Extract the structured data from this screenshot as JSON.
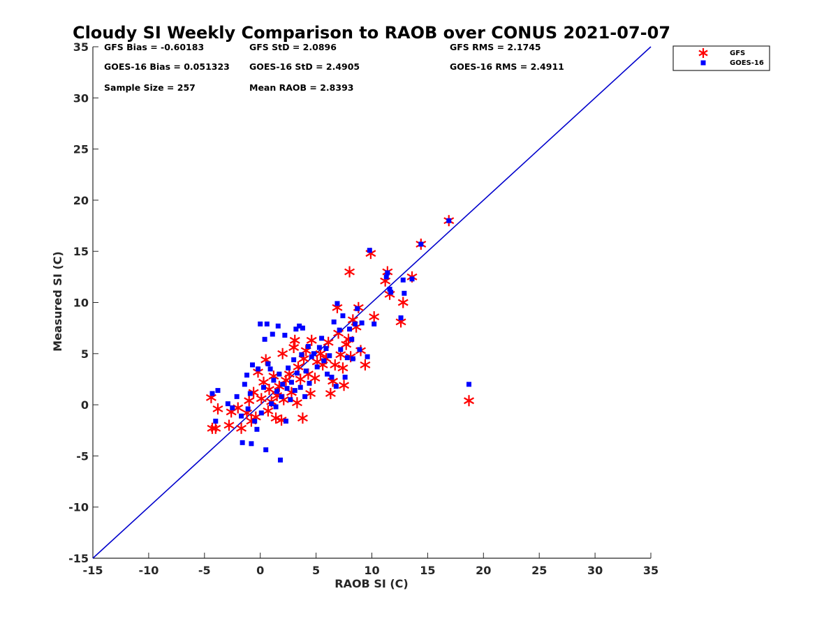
{
  "chart_data": {
    "type": "scatter",
    "title": "Cloudy SI Weekly Comparison to RAOB over CONUS 2021-07-07",
    "xlabel": "RAOB SI (C)",
    "ylabel": "Measured SI (C)",
    "xlim": [
      -15,
      35
    ],
    "ylim": [
      -15,
      35
    ],
    "xticks": [
      "-15",
      "-10",
      "-5",
      "0",
      "5",
      "10",
      "15",
      "20",
      "25",
      "30",
      "35"
    ],
    "yticks": [
      "35",
      "30",
      "25",
      "20",
      "15",
      "10",
      "5",
      "0",
      "-5",
      "-10",
      "-15"
    ],
    "grid": false,
    "legend_position": "top-right outside",
    "reference_line": {
      "x": [
        -15,
        35
      ],
      "y": [
        -15,
        35
      ],
      "color": "#0000cc"
    },
    "stats": [
      {
        "key": "gfs_bias",
        "text": "GFS Bias = -0.60183"
      },
      {
        "key": "gfs_std",
        "text": "GFS StD = 2.0896"
      },
      {
        "key": "gfs_rms",
        "text": "GFS RMS = 2.1745"
      },
      {
        "key": "goes_bias",
        "text": "GOES-16 Bias = 0.051323"
      },
      {
        "key": "goes_std",
        "text": "GOES-16 StD = 2.4905"
      },
      {
        "key": "goes_rms",
        "text": "GOES-16 RMS = 2.4911"
      },
      {
        "key": "sample_size",
        "text": "Sample Size = 257"
      },
      {
        "key": "mean_raob",
        "text": "Mean RAOB = 2.8393"
      }
    ],
    "series": [
      {
        "name": "GFS",
        "marker": "asterisk",
        "color": "#ff0000",
        "points": [
          [
            -4.4,
            0.7
          ],
          [
            -4.3,
            -2.3
          ],
          [
            -4.0,
            -2.3
          ],
          [
            -3.8,
            -0.4
          ],
          [
            -2.8,
            -2.0
          ],
          [
            -2.6,
            -0.7
          ],
          [
            -2.0,
            -0.3
          ],
          [
            -1.7,
            -2.3
          ],
          [
            -1.2,
            -0.8
          ],
          [
            -1.0,
            0.4
          ],
          [
            -0.8,
            -1.6
          ],
          [
            -0.6,
            1.2
          ],
          [
            -0.4,
            -1.2
          ],
          [
            -0.2,
            3.2
          ],
          [
            0.1,
            0.6
          ],
          [
            0.3,
            2.2
          ],
          [
            0.5,
            4.4
          ],
          [
            0.7,
            -0.6
          ],
          [
            0.8,
            1.5
          ],
          [
            1.0,
            0.3
          ],
          [
            1.2,
            2.8
          ],
          [
            1.4,
            -1.3
          ],
          [
            1.5,
            0.9
          ],
          [
            1.7,
            1.8
          ],
          [
            1.9,
            -1.5
          ],
          [
            2.0,
            5.0
          ],
          [
            2.1,
            0.5
          ],
          [
            2.3,
            2.4
          ],
          [
            2.6,
            3.0
          ],
          [
            2.8,
            1.2
          ],
          [
            3.0,
            5.6
          ],
          [
            3.1,
            6.3
          ],
          [
            3.3,
            0.2
          ],
          [
            3.4,
            3.7
          ],
          [
            3.6,
            2.5
          ],
          [
            3.8,
            -1.3
          ],
          [
            3.9,
            4.5
          ],
          [
            4.1,
            5.3
          ],
          [
            4.3,
            3.0
          ],
          [
            4.5,
            1.1
          ],
          [
            4.6,
            6.3
          ],
          [
            4.9,
            2.6
          ],
          [
            5.1,
            4.2
          ],
          [
            5.4,
            5.0
          ],
          [
            5.6,
            3.9
          ],
          [
            5.9,
            4.5
          ],
          [
            6.1,
            6.1
          ],
          [
            6.3,
            1.1
          ],
          [
            6.5,
            2.3
          ],
          [
            6.7,
            3.9
          ],
          [
            6.9,
            9.5
          ],
          [
            7.0,
            7.0
          ],
          [
            7.2,
            4.9
          ],
          [
            7.4,
            3.6
          ],
          [
            7.5,
            1.9
          ],
          [
            7.7,
            5.9
          ],
          [
            7.9,
            6.4
          ],
          [
            8.0,
            13.0
          ],
          [
            8.1,
            4.7
          ],
          [
            8.3,
            8.3
          ],
          [
            8.6,
            7.6
          ],
          [
            8.8,
            9.5
          ],
          [
            9.0,
            5.3
          ],
          [
            9.4,
            3.9
          ],
          [
            9.9,
            14.8
          ],
          [
            10.2,
            8.6
          ],
          [
            11.2,
            12.1
          ],
          [
            11.4,
            13.0
          ],
          [
            11.6,
            10.8
          ],
          [
            12.6,
            8.1
          ],
          [
            12.8,
            10.0
          ],
          [
            13.6,
            12.5
          ],
          [
            14.4,
            15.7
          ],
          [
            16.9,
            18.0
          ],
          [
            18.7,
            0.4
          ]
        ]
      },
      {
        "name": "GOES-16",
        "marker": "square",
        "color": "#0000ff",
        "points": [
          [
            -4.3,
            1.1
          ],
          [
            -4.0,
            -1.6
          ],
          [
            -3.8,
            1.4
          ],
          [
            -2.9,
            0.1
          ],
          [
            -2.5,
            -0.3
          ],
          [
            -2.1,
            0.8
          ],
          [
            -1.7,
            -1.1
          ],
          [
            -1.6,
            -3.7
          ],
          [
            -1.4,
            2.0
          ],
          [
            -1.2,
            2.9
          ],
          [
            -1.1,
            -0.4
          ],
          [
            -0.9,
            1.1
          ],
          [
            -0.8,
            -3.8
          ],
          [
            -0.7,
            3.9
          ],
          [
            -0.5,
            -1.6
          ],
          [
            -0.3,
            -2.4
          ],
          [
            -0.2,
            3.5
          ],
          [
            0.0,
            7.9
          ],
          [
            0.1,
            -0.8
          ],
          [
            0.3,
            1.7
          ],
          [
            0.4,
            6.4
          ],
          [
            0.5,
            -4.4
          ],
          [
            0.6,
            7.9
          ],
          [
            0.7,
            4.0
          ],
          [
            0.9,
            3.5
          ],
          [
            1.0,
            0.1
          ],
          [
            1.1,
            6.9
          ],
          [
            1.2,
            2.4
          ],
          [
            1.4,
            -0.2
          ],
          [
            1.5,
            1.3
          ],
          [
            1.6,
            7.7
          ],
          [
            1.7,
            3.0
          ],
          [
            1.8,
            -5.4
          ],
          [
            1.9,
            0.8
          ],
          [
            2.0,
            2.0
          ],
          [
            2.2,
            6.8
          ],
          [
            2.3,
            -1.6
          ],
          [
            2.4,
            1.6
          ],
          [
            2.5,
            3.6
          ],
          [
            2.7,
            0.5
          ],
          [
            2.8,
            2.2
          ],
          [
            3.0,
            4.4
          ],
          [
            3.1,
            1.4
          ],
          [
            3.2,
            7.4
          ],
          [
            3.3,
            3.1
          ],
          [
            3.5,
            7.7
          ],
          [
            3.6,
            1.7
          ],
          [
            3.7,
            4.9
          ],
          [
            3.8,
            7.5
          ],
          [
            4.0,
            0.8
          ],
          [
            4.1,
            3.3
          ],
          [
            4.3,
            5.7
          ],
          [
            4.4,
            2.1
          ],
          [
            4.6,
            4.7
          ],
          [
            4.8,
            5.0
          ],
          [
            5.1,
            3.7
          ],
          [
            5.3,
            5.6
          ],
          [
            5.5,
            6.5
          ],
          [
            5.7,
            4.3
          ],
          [
            5.9,
            5.5
          ],
          [
            6.0,
            3.0
          ],
          [
            6.2,
            4.8
          ],
          [
            6.4,
            2.7
          ],
          [
            6.6,
            8.1
          ],
          [
            6.8,
            1.8
          ],
          [
            6.9,
            9.9
          ],
          [
            7.1,
            7.3
          ],
          [
            7.2,
            5.4
          ],
          [
            7.4,
            8.7
          ],
          [
            7.6,
            2.7
          ],
          [
            7.8,
            4.6
          ],
          [
            8.0,
            7.4
          ],
          [
            8.2,
            6.4
          ],
          [
            8.3,
            4.5
          ],
          [
            8.5,
            7.9
          ],
          [
            8.7,
            9.4
          ],
          [
            8.9,
            5.4
          ],
          [
            9.1,
            8.0
          ],
          [
            9.6,
            4.7
          ],
          [
            9.8,
            15.1
          ],
          [
            10.2,
            7.9
          ],
          [
            11.3,
            12.5
          ],
          [
            11.4,
            12.9
          ],
          [
            11.6,
            11.3
          ],
          [
            11.7,
            11.0
          ],
          [
            12.6,
            8.5
          ],
          [
            12.8,
            12.2
          ],
          [
            12.9,
            10.9
          ],
          [
            13.6,
            12.3
          ],
          [
            14.4,
            15.7
          ],
          [
            16.9,
            18.0
          ],
          [
            18.7,
            2.0
          ]
        ]
      }
    ]
  }
}
